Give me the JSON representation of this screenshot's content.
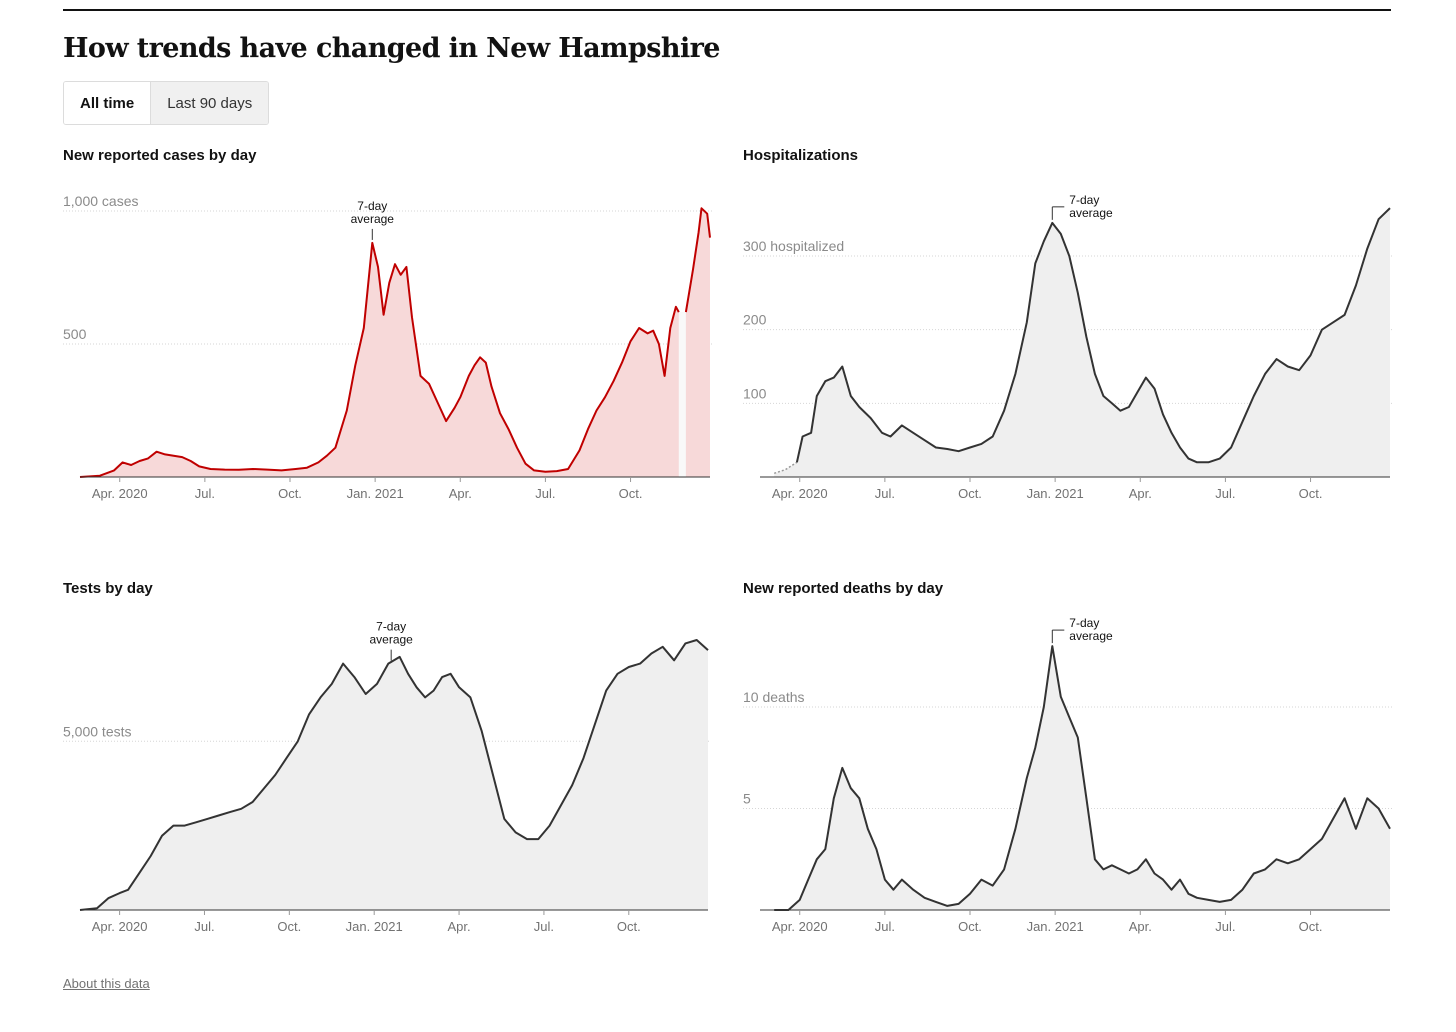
{
  "page": {
    "title": "How trends have changed in New Hampshire",
    "toggle": [
      {
        "label": "All time",
        "active": true
      },
      {
        "label": "Last 90 days",
        "active": false
      }
    ],
    "about_link": "About this data",
    "annotation_line1": "7-day",
    "annotation_line2": "average"
  },
  "chart_data": [
    {
      "id": "cases",
      "type": "area",
      "title": "New reported cases by day",
      "x_ticks": [
        "Apr. 2020",
        "Jul.",
        "Oct.",
        "Jan. 2021",
        "Apr.",
        "Jul.",
        "Oct."
      ],
      "x_tick_months": [
        1,
        4,
        7,
        10,
        13,
        16,
        19
      ],
      "y_ticks": [
        {
          "value": 500,
          "label": "500"
        },
        {
          "value": 1000,
          "label": "1,000 cases"
        }
      ],
      "ylim": [
        0,
        1000
      ],
      "xlim_months": [
        -0.4,
        21.8
      ],
      "line_color": "#c00000",
      "fill_color": "#f7d9d9",
      "annotation_month": 9.9,
      "gap_months": [
        20.7,
        20.95
      ],
      "points": [
        [
          -0.4,
          0
        ],
        [
          0.3,
          5
        ],
        [
          0.8,
          25
        ],
        [
          1.1,
          55
        ],
        [
          1.4,
          45
        ],
        [
          1.7,
          60
        ],
        [
          2.0,
          70
        ],
        [
          2.3,
          95
        ],
        [
          2.6,
          85
        ],
        [
          2.9,
          80
        ],
        [
          3.2,
          75
        ],
        [
          3.5,
          60
        ],
        [
          3.8,
          40
        ],
        [
          4.2,
          30
        ],
        [
          4.7,
          28
        ],
        [
          5.2,
          27
        ],
        [
          5.7,
          30
        ],
        [
          6.2,
          28
        ],
        [
          6.7,
          25
        ],
        [
          7.2,
          30
        ],
        [
          7.6,
          35
        ],
        [
          8.0,
          55
        ],
        [
          8.3,
          80
        ],
        [
          8.6,
          110
        ],
        [
          9.0,
          250
        ],
        [
          9.3,
          420
        ],
        [
          9.6,
          560
        ],
        [
          9.9,
          880
        ],
        [
          10.1,
          790
        ],
        [
          10.3,
          610
        ],
        [
          10.5,
          730
        ],
        [
          10.7,
          800
        ],
        [
          10.9,
          760
        ],
        [
          11.1,
          790
        ],
        [
          11.3,
          600
        ],
        [
          11.6,
          380
        ],
        [
          11.9,
          350
        ],
        [
          12.2,
          280
        ],
        [
          12.5,
          210
        ],
        [
          12.8,
          260
        ],
        [
          13.0,
          300
        ],
        [
          13.3,
          380
        ],
        [
          13.5,
          420
        ],
        [
          13.7,
          450
        ],
        [
          13.9,
          430
        ],
        [
          14.1,
          340
        ],
        [
          14.4,
          240
        ],
        [
          14.7,
          180
        ],
        [
          15.0,
          110
        ],
        [
          15.3,
          50
        ],
        [
          15.6,
          25
        ],
        [
          16.0,
          20
        ],
        [
          16.4,
          22
        ],
        [
          16.8,
          30
        ],
        [
          17.2,
          100
        ],
        [
          17.5,
          180
        ],
        [
          17.8,
          250
        ],
        [
          18.1,
          300
        ],
        [
          18.4,
          360
        ],
        [
          18.7,
          430
        ],
        [
          19.0,
          510
        ],
        [
          19.3,
          560
        ],
        [
          19.6,
          540
        ],
        [
          19.8,
          550
        ],
        [
          20.0,
          500
        ],
        [
          20.2,
          380
        ],
        [
          20.4,
          560
        ],
        [
          20.6,
          640
        ],
        [
          20.7,
          620
        ],
        [
          20.95,
          620
        ],
        [
          21.2,
          780
        ],
        [
          21.4,
          920
        ],
        [
          21.5,
          1010
        ],
        [
          21.7,
          990
        ],
        [
          21.8,
          900
        ]
      ]
    },
    {
      "id": "hospitalizations",
      "type": "area",
      "title": "Hospitalizations",
      "x_ticks": [
        "Apr. 2020",
        "Jul.",
        "Oct.",
        "Jan. 2021",
        "Apr.",
        "Jul.",
        "Oct."
      ],
      "x_tick_months": [
        1,
        4,
        7,
        10,
        13,
        16,
        19
      ],
      "y_ticks": [
        {
          "value": 100,
          "label": "100"
        },
        {
          "value": 200,
          "label": "200"
        },
        {
          "value": 300,
          "label": "300 hospitalized"
        }
      ],
      "ylim": [
        0,
        300
      ],
      "xlim_months": [
        -0.4,
        21.8
      ],
      "line_color": "#333333",
      "fill_color": "#efefef",
      "annotation_month": 9.9,
      "dashed_start_months": [
        0.1,
        0.9
      ],
      "points": [
        [
          0.1,
          5
        ],
        [
          0.5,
          10
        ],
        [
          0.9,
          20
        ],
        [
          1.1,
          55
        ],
        [
          1.4,
          60
        ],
        [
          1.6,
          110
        ],
        [
          1.9,
          130
        ],
        [
          2.2,
          135
        ],
        [
          2.5,
          150
        ],
        [
          2.8,
          110
        ],
        [
          3.1,
          95
        ],
        [
          3.5,
          80
        ],
        [
          3.9,
          60
        ],
        [
          4.2,
          55
        ],
        [
          4.6,
          70
        ],
        [
          5.0,
          60
        ],
        [
          5.4,
          50
        ],
        [
          5.8,
          40
        ],
        [
          6.2,
          38
        ],
        [
          6.6,
          35
        ],
        [
          7.0,
          40
        ],
        [
          7.4,
          45
        ],
        [
          7.8,
          55
        ],
        [
          8.2,
          90
        ],
        [
          8.6,
          140
        ],
        [
          9.0,
          210
        ],
        [
          9.3,
          290
        ],
        [
          9.6,
          320
        ],
        [
          9.9,
          345
        ],
        [
          10.2,
          330
        ],
        [
          10.5,
          300
        ],
        [
          10.8,
          250
        ],
        [
          11.1,
          190
        ],
        [
          11.4,
          140
        ],
        [
          11.7,
          110
        ],
        [
          12.0,
          100
        ],
        [
          12.3,
          90
        ],
        [
          12.6,
          95
        ],
        [
          12.9,
          115
        ],
        [
          13.2,
          135
        ],
        [
          13.5,
          120
        ],
        [
          13.8,
          85
        ],
        [
          14.1,
          60
        ],
        [
          14.4,
          40
        ],
        [
          14.7,
          25
        ],
        [
          15.0,
          20
        ],
        [
          15.4,
          20
        ],
        [
          15.8,
          25
        ],
        [
          16.2,
          40
        ],
        [
          16.6,
          75
        ],
        [
          17.0,
          110
        ],
        [
          17.4,
          140
        ],
        [
          17.8,
          160
        ],
        [
          18.2,
          150
        ],
        [
          18.6,
          145
        ],
        [
          19.0,
          165
        ],
        [
          19.4,
          200
        ],
        [
          19.8,
          210
        ],
        [
          20.2,
          220
        ],
        [
          20.6,
          260
        ],
        [
          21.0,
          310
        ],
        [
          21.4,
          350
        ],
        [
          21.8,
          365
        ]
      ]
    },
    {
      "id": "tests",
      "type": "area",
      "title": "Tests by day",
      "x_ticks": [
        "Apr. 2020",
        "Jul.",
        "Oct.",
        "Jan. 2021",
        "Apr.",
        "Jul.",
        "Oct."
      ],
      "x_tick_months": [
        1,
        4,
        7,
        10,
        13,
        16,
        19
      ],
      "y_ticks": [
        {
          "value": 5000,
          "label": "5,000 tests"
        }
      ],
      "ylim": [
        0,
        8000
      ],
      "xlim_months": [
        -0.4,
        21.8
      ],
      "line_color": "#333333",
      "fill_color": "#efefef",
      "annotation_month": 10.6,
      "points": [
        [
          -0.4,
          0
        ],
        [
          0.2,
          50
        ],
        [
          0.6,
          350
        ],
        [
          1.0,
          500
        ],
        [
          1.3,
          600
        ],
        [
          1.7,
          1100
        ],
        [
          2.1,
          1600
        ],
        [
          2.5,
          2200
        ],
        [
          2.9,
          2500
        ],
        [
          3.3,
          2500
        ],
        [
          3.7,
          2600
        ],
        [
          4.1,
          2700
        ],
        [
          4.5,
          2800
        ],
        [
          4.9,
          2900
        ],
        [
          5.3,
          3000
        ],
        [
          5.7,
          3200
        ],
        [
          6.1,
          3600
        ],
        [
          6.5,
          4000
        ],
        [
          6.9,
          4500
        ],
        [
          7.3,
          5000
        ],
        [
          7.7,
          5800
        ],
        [
          8.1,
          6300
        ],
        [
          8.5,
          6700
        ],
        [
          8.9,
          7300
        ],
        [
          9.3,
          6900
        ],
        [
          9.7,
          6400
        ],
        [
          10.1,
          6700
        ],
        [
          10.5,
          7300
        ],
        [
          10.9,
          7500
        ],
        [
          11.2,
          7000
        ],
        [
          11.5,
          6600
        ],
        [
          11.8,
          6300
        ],
        [
          12.1,
          6500
        ],
        [
          12.4,
          6900
        ],
        [
          12.7,
          7000
        ],
        [
          13.0,
          6600
        ],
        [
          13.4,
          6300
        ],
        [
          13.8,
          5300
        ],
        [
          14.2,
          4000
        ],
        [
          14.6,
          2700
        ],
        [
          15.0,
          2300
        ],
        [
          15.4,
          2100
        ],
        [
          15.8,
          2100
        ],
        [
          16.2,
          2500
        ],
        [
          16.6,
          3100
        ],
        [
          17.0,
          3700
        ],
        [
          17.4,
          4500
        ],
        [
          17.8,
          5500
        ],
        [
          18.2,
          6500
        ],
        [
          18.6,
          7000
        ],
        [
          19.0,
          7200
        ],
        [
          19.4,
          7300
        ],
        [
          19.8,
          7600
        ],
        [
          20.2,
          7800
        ],
        [
          20.6,
          7400
        ],
        [
          21.0,
          7900
        ],
        [
          21.4,
          8000
        ],
        [
          21.8,
          7700
        ]
      ]
    },
    {
      "id": "deaths",
      "type": "area",
      "title": "New reported deaths by day",
      "x_ticks": [
        "Apr. 2020",
        "Jul.",
        "Oct.",
        "Jan. 2021",
        "Apr.",
        "Jul.",
        "Oct."
      ],
      "x_tick_months": [
        1,
        4,
        7,
        10,
        13,
        16,
        19
      ],
      "y_ticks": [
        {
          "value": 5,
          "label": "5"
        },
        {
          "value": 10,
          "label": "10 deaths"
        }
      ],
      "ylim": [
        0,
        10
      ],
      "xlim_months": [
        -0.4,
        21.8
      ],
      "line_color": "#333333",
      "fill_color": "#efefef",
      "annotation_month": 9.9,
      "points": [
        [
          0.1,
          0
        ],
        [
          0.6,
          0
        ],
        [
          1.0,
          0.5
        ],
        [
          1.3,
          1.5
        ],
        [
          1.6,
          2.5
        ],
        [
          1.9,
          3.0
        ],
        [
          2.2,
          5.5
        ],
        [
          2.5,
          7.0
        ],
        [
          2.8,
          6.0
        ],
        [
          3.1,
          5.5
        ],
        [
          3.4,
          4.0
        ],
        [
          3.7,
          3.0
        ],
        [
          4.0,
          1.5
        ],
        [
          4.3,
          1.0
        ],
        [
          4.6,
          1.5
        ],
        [
          5.0,
          1.0
        ],
        [
          5.4,
          0.6
        ],
        [
          5.8,
          0.4
        ],
        [
          6.2,
          0.2
        ],
        [
          6.6,
          0.3
        ],
        [
          7.0,
          0.8
        ],
        [
          7.4,
          1.5
        ],
        [
          7.8,
          1.2
        ],
        [
          8.2,
          2.0
        ],
        [
          8.6,
          4.0
        ],
        [
          9.0,
          6.5
        ],
        [
          9.3,
          8.0
        ],
        [
          9.6,
          10.0
        ],
        [
          9.9,
          13.0
        ],
        [
          10.2,
          10.5
        ],
        [
          10.5,
          9.5
        ],
        [
          10.8,
          8.5
        ],
        [
          11.1,
          5.5
        ],
        [
          11.4,
          2.5
        ],
        [
          11.7,
          2.0
        ],
        [
          12.0,
          2.2
        ],
        [
          12.3,
          2.0
        ],
        [
          12.6,
          1.8
        ],
        [
          12.9,
          2.0
        ],
        [
          13.2,
          2.5
        ],
        [
          13.5,
          1.8
        ],
        [
          13.8,
          1.5
        ],
        [
          14.1,
          1.0
        ],
        [
          14.4,
          1.5
        ],
        [
          14.7,
          0.8
        ],
        [
          15.0,
          0.6
        ],
        [
          15.4,
          0.5
        ],
        [
          15.8,
          0.4
        ],
        [
          16.2,
          0.5
        ],
        [
          16.6,
          1.0
        ],
        [
          17.0,
          1.8
        ],
        [
          17.4,
          2.0
        ],
        [
          17.8,
          2.5
        ],
        [
          18.2,
          2.3
        ],
        [
          18.6,
          2.5
        ],
        [
          19.0,
          3.0
        ],
        [
          19.4,
          3.5
        ],
        [
          19.8,
          4.5
        ],
        [
          20.2,
          5.5
        ],
        [
          20.6,
          4.0
        ],
        [
          21.0,
          5.5
        ],
        [
          21.4,
          5.0
        ],
        [
          21.8,
          4.0
        ]
      ]
    }
  ]
}
